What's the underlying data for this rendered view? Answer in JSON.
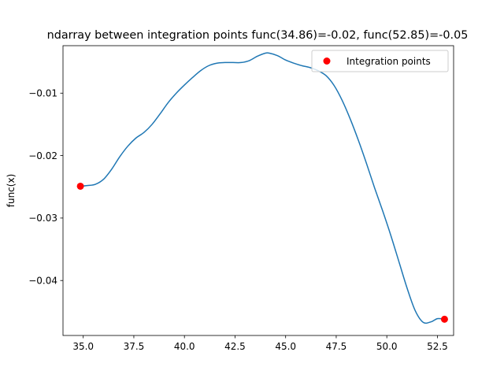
{
  "chart_data": {
    "type": "line",
    "title": "ndarray between integration points func(34.86)=-0.02, func(52.85)=-0.05",
    "xlabel": "",
    "ylabel": "func(x)",
    "xlim": [
      34.0,
      53.3
    ],
    "ylim": [
      -0.0488,
      -0.0024
    ],
    "x_ticks": [
      35.0,
      37.5,
      40.0,
      42.5,
      45.0,
      47.5,
      50.0,
      52.5
    ],
    "x_tick_labels": [
      "35.0",
      "37.5",
      "40.0",
      "42.5",
      "45.0",
      "47.5",
      "50.0",
      "52.5"
    ],
    "y_ticks": [
      -0.04,
      -0.03,
      -0.02,
      -0.01
    ],
    "y_tick_labels": [
      "−0.04",
      "−0.03",
      "−0.02",
      "−0.01"
    ],
    "grid": false,
    "legend_position": "top-right",
    "series": [
      {
        "kind": "line",
        "color": "#1f77b4",
        "x": [
          34.86,
          35.2,
          35.6,
          36.0,
          36.4,
          36.8,
          37.2,
          37.6,
          38.0,
          38.4,
          38.8,
          39.2,
          39.6,
          40.0,
          40.4,
          40.8,
          41.2,
          41.6,
          42.0,
          42.4,
          42.8,
          43.2,
          43.6,
          44.0,
          44.2,
          44.6,
          45.0,
          45.4,
          45.8,
          46.2,
          46.6,
          47.0,
          47.4,
          47.8,
          48.2,
          48.6,
          49.0,
          49.4,
          49.8,
          50.2,
          50.6,
          51.0,
          51.4,
          51.8,
          52.2,
          52.5,
          52.85
        ],
        "y": [
          -0.0249,
          -0.0248,
          -0.0246,
          -0.0238,
          -0.0222,
          -0.0202,
          -0.0185,
          -0.0172,
          -0.0163,
          -0.015,
          -0.0133,
          -0.0115,
          -0.01,
          -0.0087,
          -0.0075,
          -0.0064,
          -0.0056,
          -0.0052,
          -0.0051,
          -0.0051,
          -0.0051,
          -0.0048,
          -0.0041,
          -0.0036,
          -0.0036,
          -0.004,
          -0.0047,
          -0.0052,
          -0.0056,
          -0.0059,
          -0.0064,
          -0.0072,
          -0.0088,
          -0.0112,
          -0.0142,
          -0.0176,
          -0.0213,
          -0.0252,
          -0.0289,
          -0.0328,
          -0.037,
          -0.0412,
          -0.0448,
          -0.0467,
          -0.0466,
          -0.0461,
          -0.0462
        ]
      },
      {
        "name": "Integration points",
        "kind": "scatter",
        "color": "#ff0000",
        "x": [
          34.86,
          52.85
        ],
        "y": [
          -0.0249,
          -0.0462
        ]
      }
    ]
  }
}
